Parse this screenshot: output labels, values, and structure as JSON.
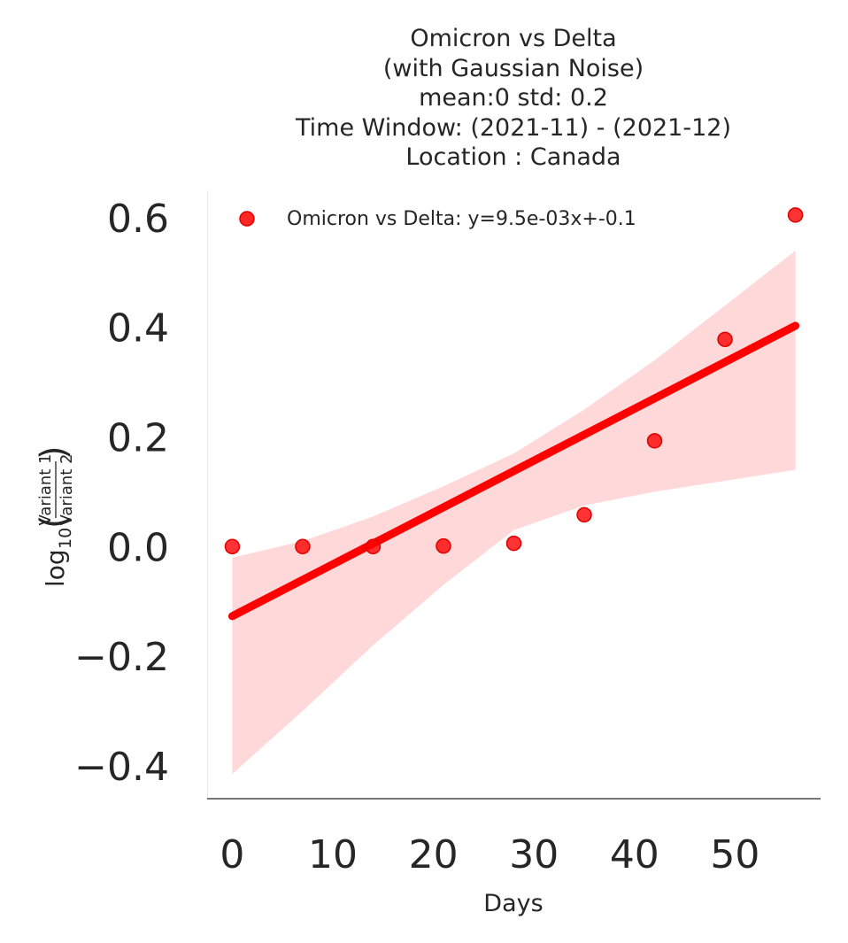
{
  "chart_data": {
    "type": "scatter",
    "title_lines": [
      "Omicron vs Delta",
      "(with Gaussian Noise)",
      "mean:0 std: 0.2",
      "Time Window: (2021-11) - (2021-12)",
      "Location : Canada"
    ],
    "xlabel": "Days",
    "ylabel": {
      "prefix": "log",
      "subscript": "10",
      "numerator": "Variant 1",
      "denominator": "Variant 2"
    },
    "xlim": [
      -2.5,
      58.5
    ],
    "ylim": [
      -0.46,
      0.65
    ],
    "xticks": [
      0,
      10,
      20,
      30,
      40,
      50
    ],
    "xtick_labels": [
      "0",
      "10",
      "20",
      "30",
      "40",
      "50"
    ],
    "yticks": [
      0.6,
      0.4,
      0.2,
      0.0,
      -0.2,
      -0.4
    ],
    "ytick_labels": [
      "0.6",
      "0.4",
      "0.2",
      "0.0",
      "−0.2",
      "−0.4"
    ],
    "grid": false,
    "legend_position": "top",
    "series": [
      {
        "name": "Omicron vs Delta: y=9.5e-03x+-0.1",
        "color": "#ff0000",
        "x": [
          0,
          7,
          14,
          21,
          28,
          35,
          42,
          49,
          56
        ],
        "y": [
          0.0,
          0.0,
          0.0,
          0.001,
          0.006,
          0.058,
          0.193,
          0.378,
          0.605
        ]
      }
    ],
    "fit": {
      "slope": 0.0095,
      "intercept": -0.1,
      "x_range": [
        0,
        56
      ],
      "y_range": [
        -0.127,
        0.403
      ],
      "ci_band": {
        "x": [
          0,
          7,
          14,
          21,
          28,
          35,
          42,
          49,
          56
        ],
        "lower": [
          -0.415,
          -0.3,
          -0.18,
          -0.07,
          0.03,
          0.075,
          0.1,
          0.12,
          0.14
        ],
        "upper": [
          -0.02,
          0.01,
          0.055,
          0.11,
          0.17,
          0.25,
          0.34,
          0.44,
          0.54
        ]
      }
    }
  }
}
